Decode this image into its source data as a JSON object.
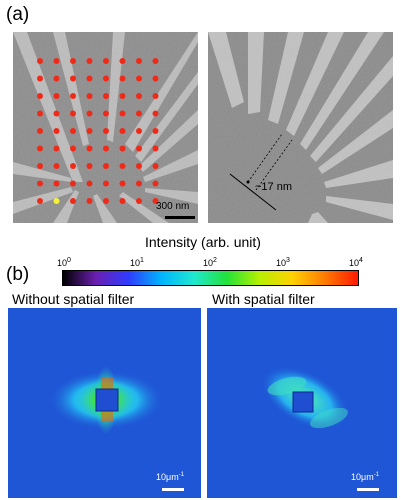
{
  "figure": {
    "panel_a": {
      "label": "(a)",
      "scale_bar": "300 nm",
      "annotation": "~17 nm"
    },
    "panel_b": {
      "label": "(b)",
      "colorbar": {
        "title": "Intensity (arb. unit)",
        "ticks": [
          {
            "base": "10",
            "exp": "0"
          },
          {
            "base": "10",
            "exp": "1"
          },
          {
            "base": "10",
            "exp": "2"
          },
          {
            "base": "10",
            "exp": "3"
          },
          {
            "base": "10",
            "exp": "4"
          }
        ],
        "colors": [
          "#000000",
          "#6a1fb0",
          "#2f3cff",
          "#00b4ff",
          "#20e8d0",
          "#22e23a",
          "#b8f000",
          "#ffd000",
          "#ff7a00",
          "#ff1a00"
        ]
      },
      "left_caption": "Without spatial filter",
      "right_caption": "With spatial filter",
      "left_scale": {
        "value": "10μm",
        "exp": "-1"
      },
      "right_scale": {
        "value": "10μm",
        "exp": "-1"
      }
    }
  }
}
